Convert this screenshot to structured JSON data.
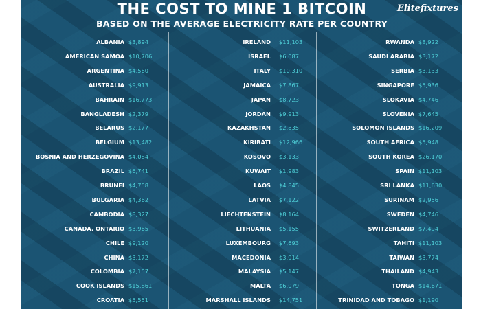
{
  "header": {
    "title": "THE COST TO MINE 1 BITCOIN",
    "subtitle": "BASED ON THE AVERAGE ELECTRICITY RATE PER COUNTRY",
    "brand": "Elitefixtures"
  },
  "columns": [
    [
      {
        "country": "ALBANIA",
        "cost": "$3,894"
      },
      {
        "country": "AMERICAN SAMOA",
        "cost": "$10,706"
      },
      {
        "country": "ARGENTINA",
        "cost": "$4,560"
      },
      {
        "country": "AUSTRALIA",
        "cost": "$9,913"
      },
      {
        "country": "BAHRAIN",
        "cost": "$16,773"
      },
      {
        "country": "BANGLADESH",
        "cost": "$2,379"
      },
      {
        "country": "BELARUS",
        "cost": "$2,177"
      },
      {
        "country": "BELGIUM",
        "cost": "$13,482"
      },
      {
        "country": "BOSNIA AND HERZEGOVINA",
        "cost": "$4,084"
      },
      {
        "country": "BRAZIL",
        "cost": "$6,741"
      },
      {
        "country": "BRUNEI",
        "cost": "$4,758"
      },
      {
        "country": "BULGARIA",
        "cost": "$4,362"
      },
      {
        "country": "CAMBODIA",
        "cost": "$8,327"
      },
      {
        "country": "CANADA, ONTARIO",
        "cost": "$3,965"
      },
      {
        "country": "CHILE",
        "cost": "$9,120"
      },
      {
        "country": "CHINA",
        "cost": "$3,172"
      },
      {
        "country": "COLOMBIA",
        "cost": "$7,157"
      },
      {
        "country": "COOK ISLANDS",
        "cost": "$15,861"
      },
      {
        "country": "CROATIA",
        "cost": "$5,551"
      }
    ],
    [
      {
        "country": "IRELAND",
        "cost": "$11,103"
      },
      {
        "country": "ISRAEL",
        "cost": "$6,087"
      },
      {
        "country": "ITALY",
        "cost": "$10,310"
      },
      {
        "country": "JAMAICA",
        "cost": "$7,867"
      },
      {
        "country": "JAPAN",
        "cost": "$8,723"
      },
      {
        "country": "JORDAN",
        "cost": "$9,913"
      },
      {
        "country": "KAZAKHSTAN",
        "cost": "$2,835"
      },
      {
        "country": "KIRIBATI",
        "cost": "$12,966"
      },
      {
        "country": "KOSOVO",
        "cost": "$3,133"
      },
      {
        "country": "KUWAIT",
        "cost": "$1,983"
      },
      {
        "country": "LAOS",
        "cost": "$4,845"
      },
      {
        "country": "LATVIA",
        "cost": "$7,122"
      },
      {
        "country": "LIECHTENSTEIN",
        "cost": "$8,164"
      },
      {
        "country": "LITHUANIA",
        "cost": "$5,155"
      },
      {
        "country": "LUXEMBOURG",
        "cost": "$7,693"
      },
      {
        "country": "MACEDONIA",
        "cost": "$3,914"
      },
      {
        "country": "MALAYSIA",
        "cost": "$5,147"
      },
      {
        "country": "MALTA",
        "cost": "$6,079"
      },
      {
        "country": "MARSHALL ISLANDS",
        "cost": "$14,751"
      }
    ],
    [
      {
        "country": "RWANDA",
        "cost": "$8,922"
      },
      {
        "country": "SAUDI ARABIA",
        "cost": "$3,172"
      },
      {
        "country": "SERBIA",
        "cost": "$3,133"
      },
      {
        "country": "SINGAPORE",
        "cost": "$5,936"
      },
      {
        "country": "SLOKAVIA",
        "cost": "$4,746"
      },
      {
        "country": "SLOVENIA",
        "cost": "$7,645"
      },
      {
        "country": "SOLOMON ISLANDS",
        "cost": "$16,209"
      },
      {
        "country": "SOUTH AFRICA",
        "cost": "$5,948"
      },
      {
        "country": "SOUTH KOREA",
        "cost": "$26,170"
      },
      {
        "country": "SPAIN",
        "cost": "$11,103"
      },
      {
        "country": "SRI LANKA",
        "cost": "$11,630"
      },
      {
        "country": "SURINAM",
        "cost": "$2,956"
      },
      {
        "country": "SWEDEN",
        "cost": "$4,746"
      },
      {
        "country": "SWITZERLAND",
        "cost": "$7,494"
      },
      {
        "country": "TAHITI",
        "cost": "$11,103"
      },
      {
        "country": "TAIWAN",
        "cost": "$3,774"
      },
      {
        "country": "THAILAND",
        "cost": "$4,943"
      },
      {
        "country": "TONGA",
        "cost": "$14,671"
      },
      {
        "country": "TRINIDAD AND TOBAGO",
        "cost": "$1,190"
      }
    ]
  ],
  "colors": {
    "background": "#1b5473",
    "country_text": "#ffffff",
    "cost_text": "#4fd0d8"
  }
}
